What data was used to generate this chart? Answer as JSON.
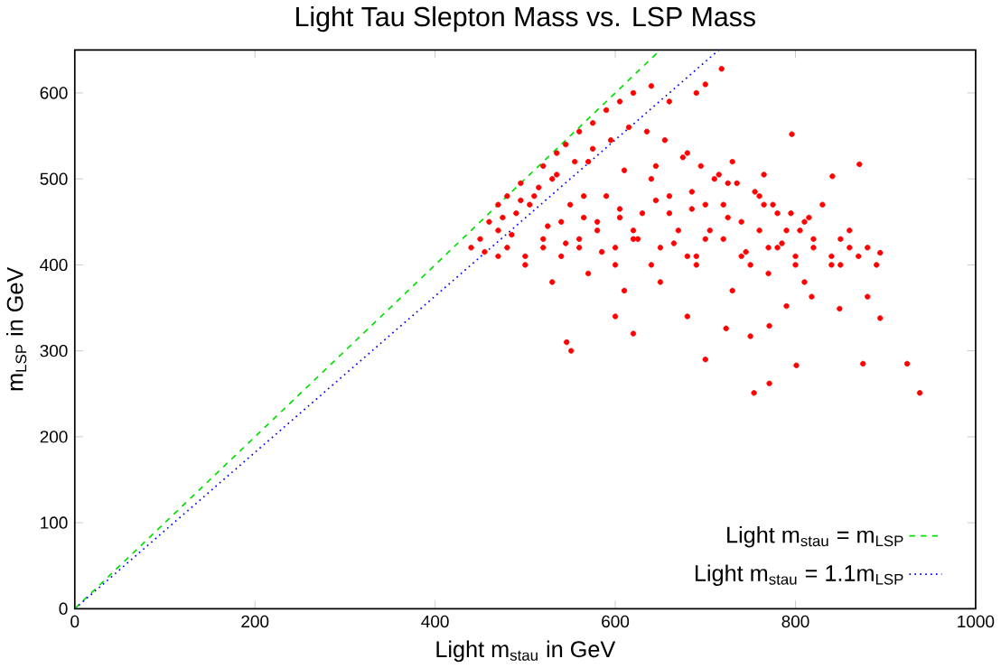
{
  "chart_data": {
    "type": "scatter",
    "title": "Light Tau Slepton Mass vs. LSP Mass",
    "xlabel": "Light m$_{stau}$ in GeV",
    "ylabel": "m$_{LSP}$ in GeV",
    "xlim": [
      0,
      1000
    ],
    "ylim": [
      0,
      650
    ],
    "xticks": [
      0,
      200,
      400,
      600,
      800,
      1000
    ],
    "yticks": [
      0,
      100,
      200,
      300,
      400,
      500,
      600
    ],
    "legend": "bottom right",
    "grid": false,
    "series": [
      {
        "color": "#ff0000",
        "marker": "circle",
        "x": [
          475,
          495,
          515,
          535,
          555,
          575,
          595,
          615,
          635,
          655,
          675,
          695,
          715,
          735,
          755,
          775,
          795,
          815,
          485,
          525,
          565,
          605,
          645,
          685,
          725,
          765,
          805,
          545,
          585,
          625,
          665,
          705,
          745,
          785,
          565,
          605,
          645,
          685,
          725,
          765,
          440,
          450,
          460,
          470,
          480,
          495,
          505,
          520,
          535,
          545,
          560,
          575,
          590,
          605,
          620,
          640,
          660,
          690,
          700,
          718,
          796,
          871,
          841,
          894,
          754,
          771,
          801,
          875,
          924,
          938,
          894,
          880,
          849,
          818,
          750,
          771,
          790,
          723,
          551,
          546,
          600,
          620,
          680,
          700,
          470,
          480,
          490,
          500,
          510,
          520,
          530,
          540,
          550,
          560,
          570,
          580,
          590,
          600,
          610,
          620,
          630,
          640,
          650,
          660,
          670,
          680,
          690,
          700,
          710,
          720,
          730,
          740,
          750,
          760,
          770,
          780,
          790,
          800,
          810,
          820,
          830,
          840,
          850,
          860,
          870,
          880,
          890,
          500,
          520,
          540,
          560,
          580,
          600,
          620,
          640,
          660,
          680,
          700,
          720,
          740,
          760,
          780,
          800,
          820,
          840,
          860,
          530,
          570,
          610,
          650,
          690,
          730,
          770,
          810,
          850,
          470,
          455
        ],
        "values": [
          455,
          475,
          490,
          505,
          520,
          535,
          545,
          560,
          555,
          545,
          525,
          515,
          505,
          495,
          485,
          470,
          460,
          455,
          435,
          445,
          455,
          465,
          475,
          485,
          495,
          470,
          440,
          425,
          415,
          430,
          425,
          440,
          415,
          425,
          480,
          455,
          515,
          465,
          455,
          505,
          420,
          430,
          450,
          470,
          480,
          495,
          470,
          515,
          530,
          540,
          555,
          565,
          580,
          590,
          600,
          608,
          590,
          600,
          610,
          628,
          552,
          517,
          503,
          414,
          251,
          262,
          283,
          285,
          285,
          251,
          338,
          363,
          349,
          363,
          317,
          329,
          352,
          326,
          300,
          310,
          340,
          320,
          340,
          290,
          440,
          420,
          460,
          410,
          480,
          430,
          500,
          450,
          470,
          420,
          520,
          440,
          480,
          400,
          510,
          430,
          460,
          500,
          420,
          480,
          440,
          530,
          410,
          470,
          500,
          430,
          520,
          450,
          400,
          480,
          420,
          460,
          440,
          410,
          450,
          420,
          470,
          400,
          430,
          440,
          410,
          420,
          400,
          400,
          420,
          410,
          430,
          450,
          420,
          440,
          400,
          460,
          410,
          430,
          470,
          410,
          440,
          420,
          400,
          430,
          410,
          420,
          380,
          390,
          370,
          380,
          400,
          370,
          390,
          380,
          400,
          410,
          415
        ]
      },
      {
        "type": "line",
        "name": "Light m$_{stau}$ = m$_{LSP}$",
        "color": "#00e000",
        "line_style": "dashed",
        "x": [
          0,
          650
        ],
        "values": [
          0,
          650
        ]
      },
      {
        "type": "line",
        "name": "Light m$_{stau}$ = 1.1m$_{LSP}$",
        "color": "#0000ff",
        "line_style": "dotted",
        "x": [
          0,
          715
        ],
        "values": [
          0,
          650
        ]
      }
    ]
  }
}
